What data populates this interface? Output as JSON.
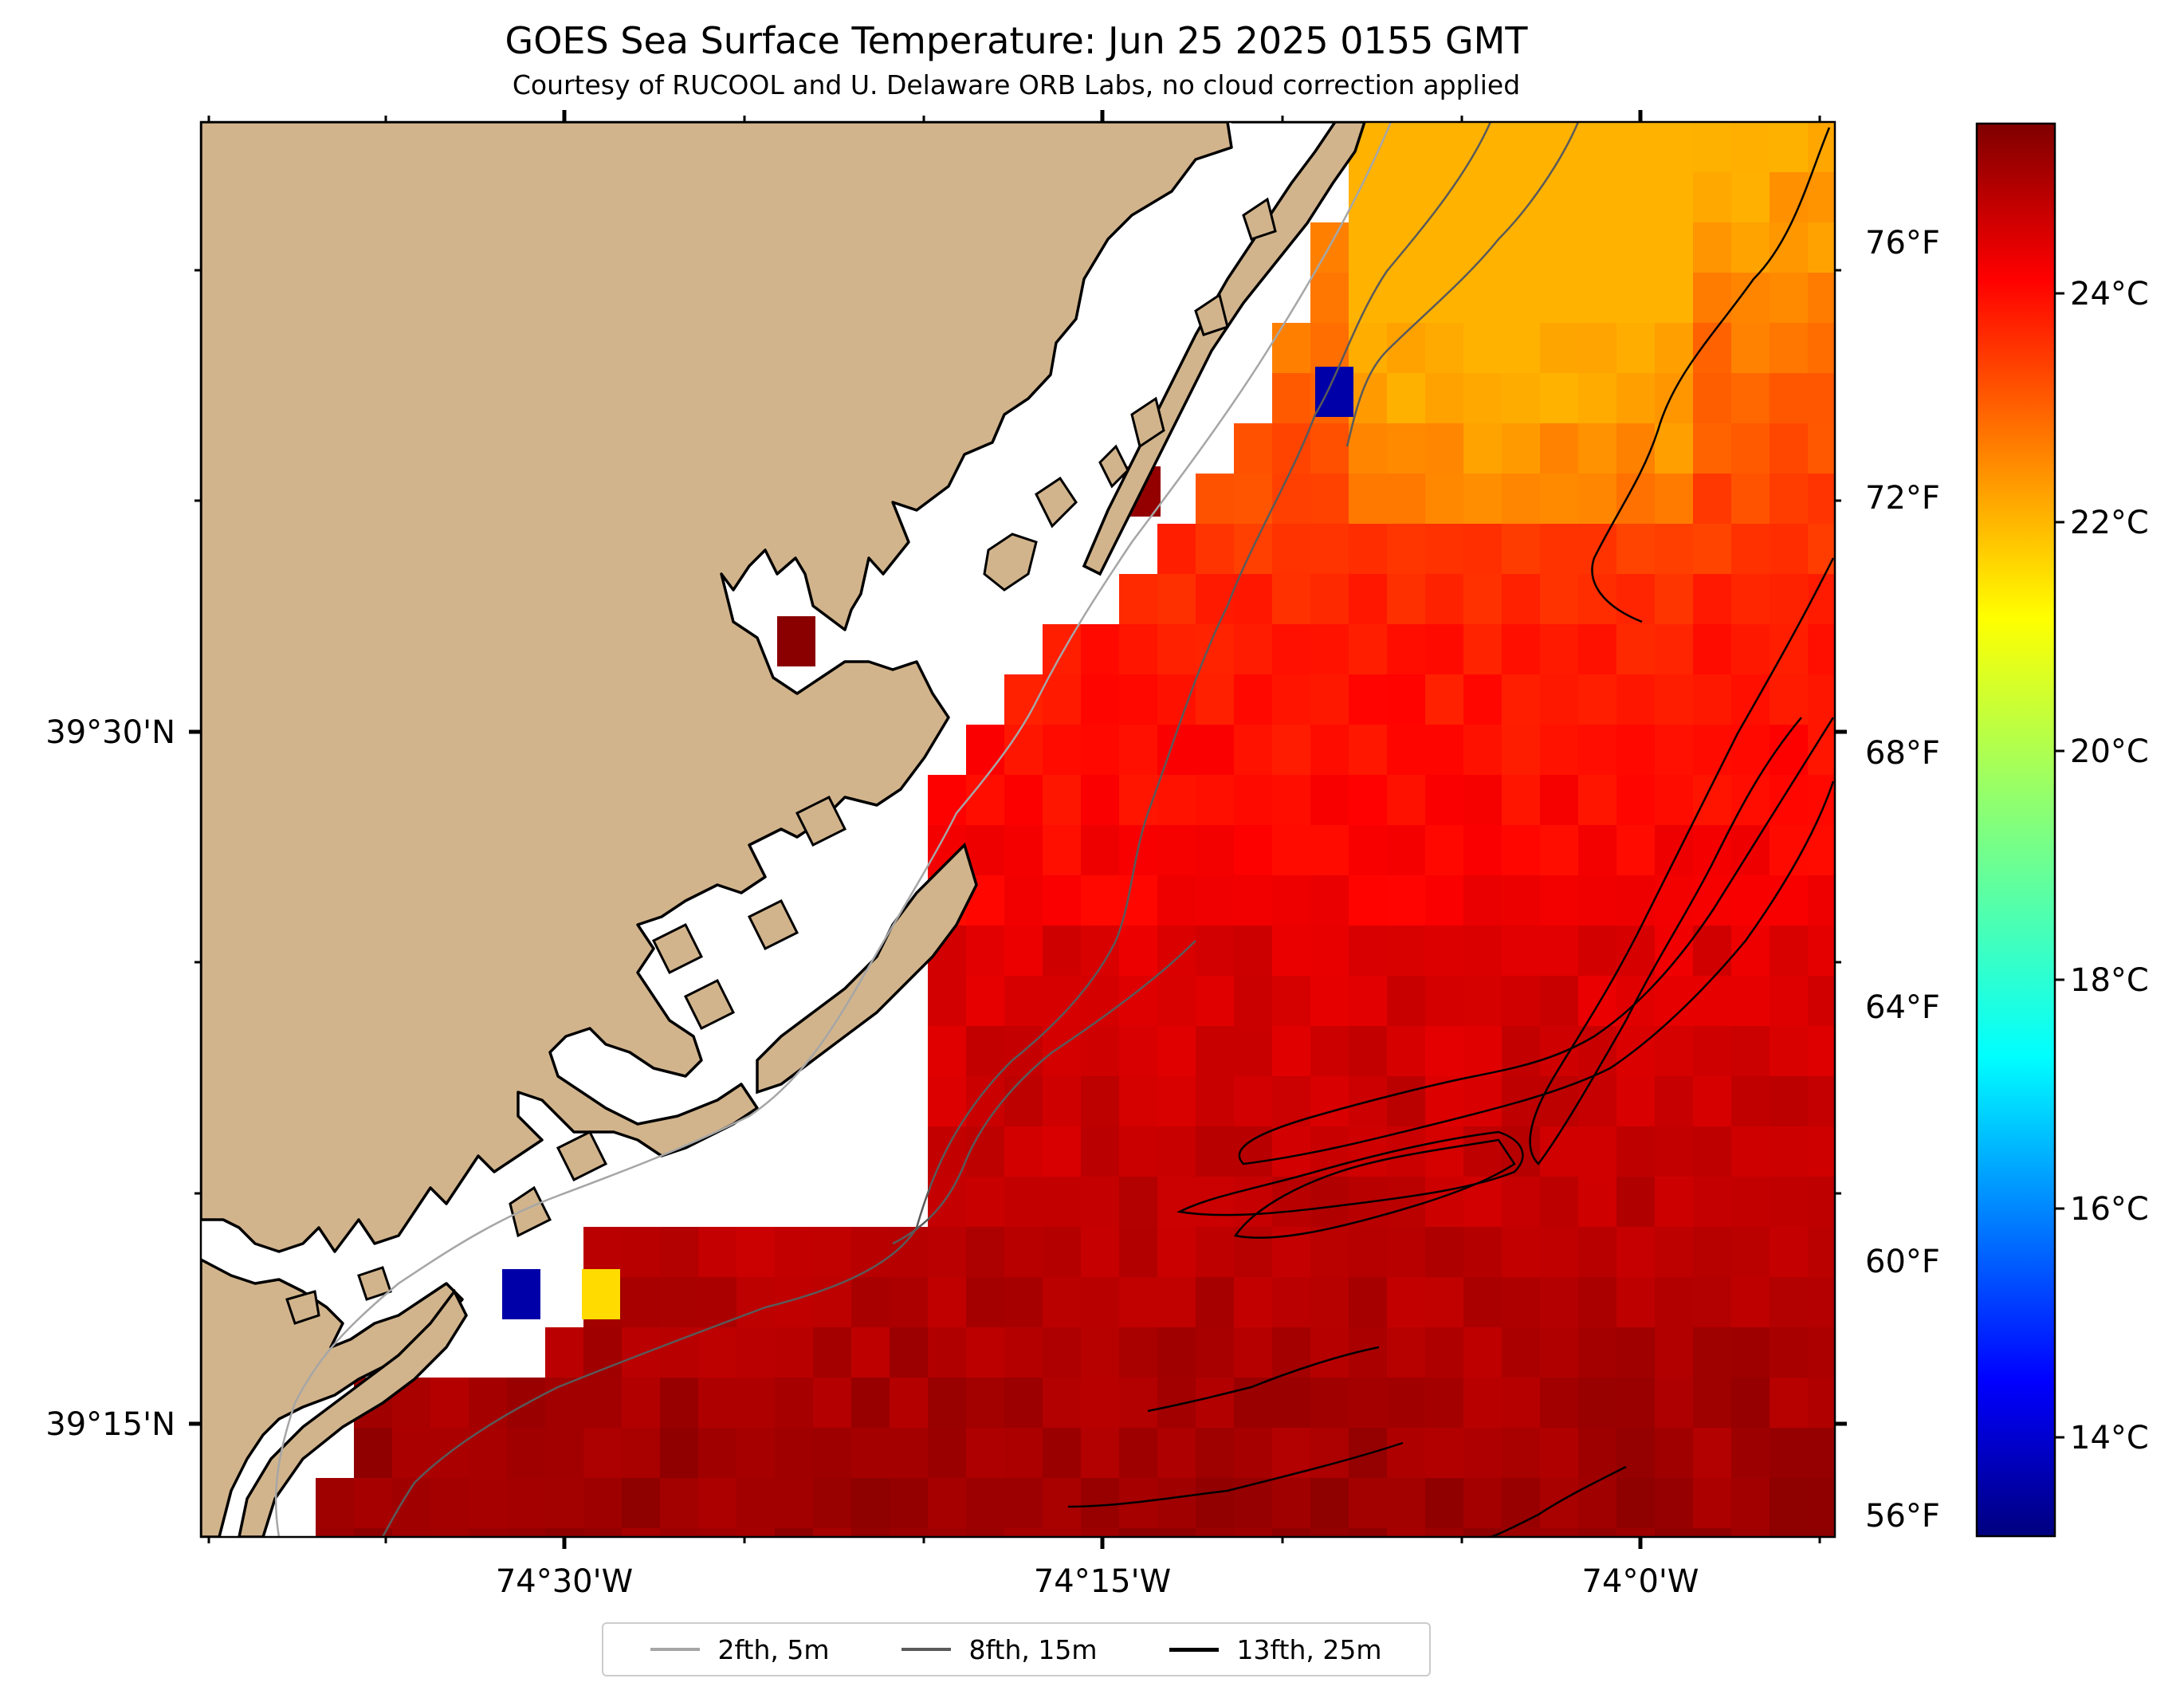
{
  "title": "GOES Sea Surface Temperature: Jun 25 2025 0155 GMT",
  "subtitle": "Courtesy of RUCOOL and U. Delaware ORB Labs, no cloud correction applied",
  "map": {
    "lon_ticks": [
      "74°30'W",
      "74°15'W",
      "74°0'W"
    ],
    "lat_ticks": [
      "39°30'N",
      "39°15'N"
    ],
    "land_color": "#d2b48c",
    "no_data_color": "#ffffff"
  },
  "colorbar": {
    "colormap": "jet",
    "celsius_ticks": [
      "24°C",
      "22°C",
      "20°C",
      "18°C",
      "16°C",
      "14°C"
    ],
    "fahrenheit_ticks": [
      "76°F",
      "72°F",
      "68°F",
      "64°F",
      "60°F",
      "56°F"
    ]
  },
  "legend": {
    "items": [
      {
        "label": "2fth, 5m",
        "color": "#a6a6a6"
      },
      {
        "label": "8fth, 15m",
        "color": "#5a5a5a"
      },
      {
        "label": "13fth, 25m",
        "color": "#000000"
      }
    ]
  }
}
